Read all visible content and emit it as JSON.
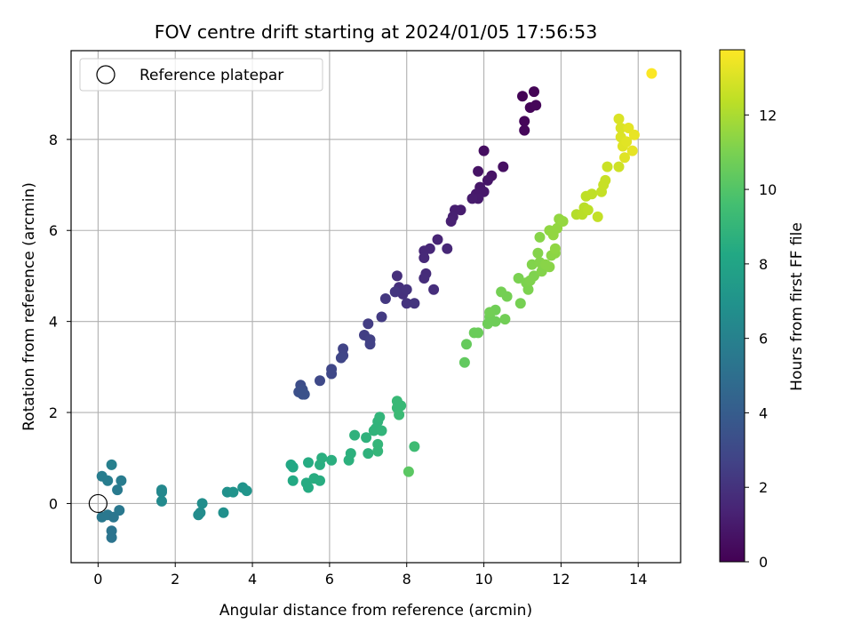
{
  "chart_data": {
    "type": "scatter",
    "title": "FOV centre drift starting at 2024/01/05 17:56:53",
    "xlabel": "Angular distance from reference (arcmin)",
    "ylabel": "Rotation from reference (arcmin)",
    "xlim": [
      -0.7,
      15.1
    ],
    "ylim": [
      -1.3,
      9.95
    ],
    "xticks": [
      0,
      2,
      4,
      6,
      8,
      10,
      12,
      14
    ],
    "yticks": [
      0,
      2,
      4,
      6,
      8
    ],
    "grid": true,
    "colormap": "viridis",
    "colorbar": {
      "label": "Hours from first FF file",
      "range": [
        0,
        13.75
      ],
      "ticks": [
        0,
        2,
        4,
        6,
        8,
        10,
        12
      ]
    },
    "legend": {
      "position": "top-left",
      "entries": [
        {
          "label": "Reference platepar",
          "marker": "open-circle"
        }
      ]
    },
    "reference_point": {
      "x": 0,
      "y": 0
    },
    "point_fields": [
      "x",
      "y",
      "hours"
    ],
    "points": [
      [
        11.0,
        8.95,
        0.1
      ],
      [
        11.3,
        9.05,
        0.1
      ],
      [
        11.2,
        8.7,
        0.15
      ],
      [
        11.35,
        8.75,
        0.2
      ],
      [
        11.05,
        8.4,
        0.2
      ],
      [
        11.05,
        8.2,
        0.25
      ],
      [
        10.0,
        7.75,
        0.5
      ],
      [
        10.5,
        7.4,
        0.6
      ],
      [
        9.85,
        7.3,
        0.7
      ],
      [
        10.2,
        7.2,
        0.7
      ],
      [
        10.1,
        7.1,
        0.8
      ],
      [
        9.9,
        6.95,
        0.85
      ],
      [
        10.0,
        6.85,
        0.9
      ],
      [
        9.8,
        6.8,
        0.95
      ],
      [
        9.85,
        6.7,
        1.0
      ],
      [
        9.7,
        6.7,
        1.05
      ],
      [
        9.4,
        6.45,
        1.1
      ],
      [
        9.25,
        6.45,
        1.15
      ],
      [
        9.2,
        6.3,
        1.2
      ],
      [
        9.15,
        6.2,
        1.25
      ],
      [
        8.8,
        5.8,
        1.4
      ],
      [
        8.6,
        5.6,
        1.5
      ],
      [
        8.45,
        5.55,
        1.55
      ],
      [
        9.05,
        5.6,
        1.55
      ],
      [
        8.45,
        5.4,
        1.6
      ],
      [
        8.5,
        5.05,
        1.7
      ],
      [
        8.45,
        4.95,
        1.75
      ],
      [
        8.7,
        4.7,
        1.8
      ],
      [
        7.75,
        5.0,
        1.85
      ],
      [
        7.8,
        4.75,
        1.9
      ],
      [
        7.9,
        4.6,
        1.95
      ],
      [
        8.0,
        4.7,
        2.0
      ],
      [
        8.0,
        4.4,
        2.05
      ],
      [
        8.2,
        4.4,
        2.1
      ],
      [
        7.7,
        4.65,
        2.15
      ],
      [
        7.45,
        4.5,
        2.25
      ],
      [
        7.35,
        4.1,
        2.35
      ],
      [
        7.0,
        3.95,
        2.45
      ],
      [
        6.9,
        3.7,
        2.55
      ],
      [
        7.05,
        3.6,
        2.6
      ],
      [
        7.05,
        3.5,
        2.65
      ],
      [
        6.35,
        3.4,
        2.75
      ],
      [
        6.35,
        3.25,
        2.8
      ],
      [
        6.3,
        3.2,
        2.85
      ],
      [
        6.05,
        2.95,
        2.9
      ],
      [
        6.05,
        2.85,
        2.95
      ],
      [
        5.75,
        2.7,
        3.0
      ],
      [
        5.25,
        2.6,
        3.2
      ],
      [
        5.3,
        2.5,
        3.3
      ],
      [
        5.2,
        2.45,
        3.35
      ],
      [
        5.3,
        2.4,
        3.4
      ],
      [
        5.35,
        2.4,
        3.45
      ],
      [
        0.35,
        0.85,
        5.9
      ],
      [
        0.1,
        0.6,
        5.8
      ],
      [
        0.25,
        0.5,
        5.8
      ],
      [
        0.6,
        0.5,
        5.7
      ],
      [
        0.5,
        0.3,
        5.6
      ],
      [
        0.55,
        -0.15,
        5.5
      ],
      [
        0.1,
        -0.3,
        5.5
      ],
      [
        0.25,
        -0.25,
        5.5
      ],
      [
        0.4,
        -0.3,
        5.4
      ],
      [
        0.35,
        -0.6,
        5.3
      ],
      [
        0.35,
        -0.75,
        5.3
      ],
      [
        1.65,
        0.3,
        6.4
      ],
      [
        1.65,
        0.25,
        6.4
      ],
      [
        1.65,
        0.05,
        6.5
      ],
      [
        2.6,
        -0.25,
        6.6
      ],
      [
        2.65,
        -0.2,
        6.6
      ],
      [
        2.7,
        0.0,
        6.7
      ],
      [
        3.25,
        -0.2,
        6.8
      ],
      [
        3.35,
        0.25,
        6.9
      ],
      [
        3.5,
        0.25,
        7.0
      ],
      [
        3.75,
        0.35,
        7.0
      ],
      [
        3.85,
        0.28,
        7.1
      ],
      [
        5.0,
        0.85,
        8.2
      ],
      [
        5.05,
        0.8,
        8.2
      ],
      [
        5.05,
        0.5,
        8.3
      ],
      [
        5.4,
        0.45,
        8.4
      ],
      [
        5.45,
        0.35,
        8.4
      ],
      [
        5.45,
        0.9,
        8.4
      ],
      [
        5.6,
        0.55,
        8.5
      ],
      [
        5.75,
        0.5,
        8.5
      ],
      [
        5.75,
        0.85,
        8.55
      ],
      [
        5.8,
        1.0,
        8.6
      ],
      [
        6.05,
        0.95,
        8.6
      ],
      [
        6.5,
        0.95,
        8.7
      ],
      [
        6.55,
        1.1,
        8.7
      ],
      [
        6.65,
        1.5,
        8.8
      ],
      [
        6.95,
        1.45,
        8.8
      ],
      [
        7.0,
        1.1,
        8.8
      ],
      [
        7.15,
        1.6,
        8.9
      ],
      [
        7.2,
        1.65,
        8.9
      ],
      [
        7.25,
        1.8,
        8.9
      ],
      [
        7.3,
        1.9,
        8.95
      ],
      [
        7.35,
        1.6,
        8.95
      ],
      [
        7.25,
        1.3,
        9.0
      ],
      [
        7.25,
        1.15,
        9.0
      ],
      [
        7.75,
        2.25,
        9.2
      ],
      [
        7.75,
        2.1,
        9.2
      ],
      [
        7.85,
        2.15,
        9.2
      ],
      [
        7.8,
        1.95,
        9.3
      ],
      [
        8.2,
        1.25,
        9.4
      ],
      [
        8.05,
        0.7,
        10.2
      ],
      [
        9.5,
        3.1,
        10.4
      ],
      [
        9.55,
        3.5,
        10.5
      ],
      [
        9.75,
        3.75,
        10.6
      ],
      [
        9.85,
        3.75,
        10.6
      ],
      [
        10.1,
        3.95,
        10.7
      ],
      [
        10.15,
        4.1,
        10.7
      ],
      [
        10.3,
        4.0,
        10.7
      ],
      [
        10.3,
        4.25,
        10.75
      ],
      [
        10.55,
        4.05,
        10.8
      ],
      [
        10.15,
        4.2,
        10.8
      ],
      [
        10.45,
        4.65,
        10.85
      ],
      [
        10.6,
        4.55,
        10.85
      ],
      [
        10.95,
        4.4,
        10.9
      ],
      [
        10.9,
        4.95,
        11.0
      ],
      [
        11.1,
        4.85,
        11.05
      ],
      [
        11.15,
        4.7,
        11.05
      ],
      [
        11.2,
        4.9,
        11.1
      ],
      [
        11.3,
        5.0,
        11.1
      ],
      [
        11.25,
        5.25,
        11.15
      ],
      [
        11.45,
        5.3,
        11.2
      ],
      [
        11.4,
        5.5,
        11.2
      ],
      [
        11.5,
        5.1,
        11.2
      ],
      [
        11.45,
        5.85,
        11.25
      ],
      [
        11.6,
        5.25,
        11.3
      ],
      [
        11.7,
        5.2,
        11.3
      ],
      [
        11.75,
        5.45,
        11.35
      ],
      [
        11.85,
        5.5,
        11.4
      ],
      [
        11.7,
        6.0,
        11.45
      ],
      [
        11.85,
        5.6,
        11.45
      ],
      [
        11.9,
        6.05,
        11.5
      ],
      [
        11.95,
        6.25,
        11.5
      ],
      [
        12.05,
        6.2,
        11.55
      ],
      [
        11.8,
        5.9,
        11.5
      ],
      [
        12.4,
        6.35,
        12.2
      ],
      [
        12.55,
        6.35,
        12.3
      ],
      [
        12.6,
        6.5,
        12.3
      ],
      [
        12.7,
        6.45,
        12.35
      ],
      [
        12.65,
        6.75,
        12.4
      ],
      [
        12.8,
        6.8,
        12.45
      ],
      [
        12.95,
        6.3,
        12.5
      ],
      [
        13.05,
        6.85,
        12.55
      ],
      [
        13.1,
        7.0,
        12.6
      ],
      [
        13.15,
        7.1,
        12.6
      ],
      [
        13.2,
        7.4,
        12.65
      ],
      [
        13.5,
        7.4,
        12.75
      ],
      [
        13.5,
        8.45,
        13.0
      ],
      [
        13.55,
        8.25,
        13.0
      ],
      [
        13.55,
        8.05,
        13.05
      ],
      [
        13.6,
        7.85,
        13.1
      ],
      [
        13.65,
        7.6,
        13.1
      ],
      [
        13.7,
        7.95,
        13.15
      ],
      [
        13.75,
        8.25,
        13.2
      ],
      [
        13.85,
        7.75,
        13.25
      ],
      [
        13.9,
        8.1,
        13.3
      ],
      [
        14.35,
        9.45,
        13.7
      ]
    ]
  }
}
